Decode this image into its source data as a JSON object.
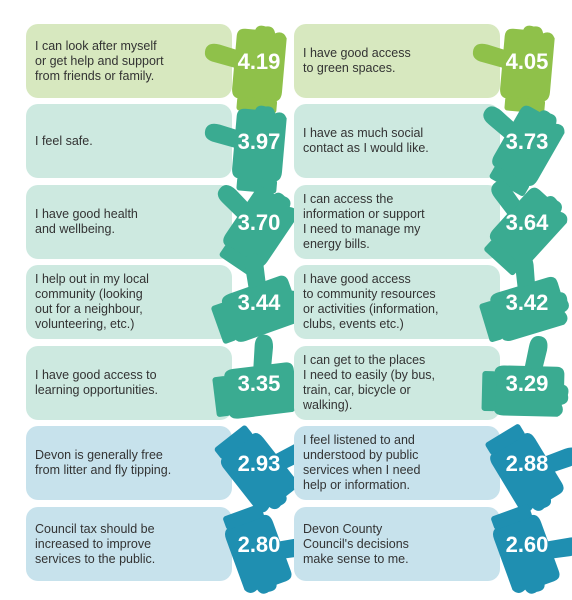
{
  "colors": {
    "green": "#8fc14a",
    "green_bg": "#d7e8bf",
    "teal": "#3aab91",
    "teal_bg": "#cde9e0",
    "blue": "#1f8fb1",
    "blue_bg": "#c7e2ec"
  },
  "chart_data": {
    "type": "table",
    "categories": [
      "I can look after myself or get help and support from friends or family.",
      "I have good access to green spaces.",
      "I feel safe.",
      "I have as much social contact as I would like.",
      "I have good health and wellbeing.",
      "I can access the information or support I need to manage my energy bills.",
      "I help out in my local community (looking out for a neighbour, volunteering, etc.)",
      "I have good access to community resources or activities (information, clubs, events etc.)",
      "I have good access to learning opportunities.",
      "I can get to the places I need to easily (by bus, train, car, bicycle or walking).",
      "Devon is generally free from litter and fly tipping.",
      "I feel listened to and understood by public services when I need help or information.",
      "Council tax should be increased to improve services to the public.",
      "Devon County Council's decisions make sense to me."
    ],
    "values": [
      "4.19",
      "4.05",
      "3.97",
      "3.73",
      "3.70",
      "3.64",
      "3.44",
      "3.42",
      "3.35",
      "3.29",
      "2.93",
      "2.88",
      "2.80",
      "2.60"
    ],
    "tone": [
      "green",
      "green",
      "teal",
      "teal",
      "teal",
      "teal",
      "teal",
      "teal",
      "teal",
      "teal",
      "blue",
      "blue",
      "blue",
      "blue"
    ],
    "lines": [
      [
        "I can look after myself",
        "or get help and support",
        "from friends or family."
      ],
      [
        "I have good access",
        "to green spaces."
      ],
      [
        "I feel safe."
      ],
      [
        "I have as much social",
        "contact as I would like."
      ],
      [
        "I have good health",
        "and wellbeing."
      ],
      [
        "I can access the",
        "information or support",
        "I need to manage my",
        "energy bills."
      ],
      [
        "I help out in my local",
        "community (looking",
        "out for a neighbour,",
        "volunteering, etc.)"
      ],
      [
        "I have good access",
        "to community resources",
        "or activities (information,",
        "clubs, events etc.)"
      ],
      [
        "I have good access to",
        "learning opportunities."
      ],
      [
        "I can get to the places",
        "I need to easily (by bus,",
        "train, car, bicycle or",
        "walking)."
      ],
      [
        "Devon is generally free",
        "from litter and fly tipping."
      ],
      [
        "I feel listened to and",
        "understood by public",
        "services when I need",
        "help or information."
      ],
      [
        "Council tax should be",
        "increased to improve",
        "services to the public."
      ],
      [
        "Devon County",
        "Council's decisions",
        "make sense to me."
      ]
    ]
  }
}
